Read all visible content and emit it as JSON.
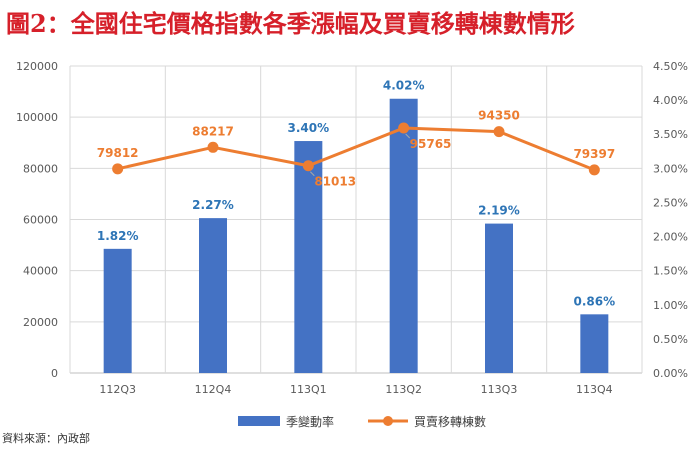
{
  "title": "圖2：全國住宅價格指數各季漲幅及買賣移轉棟數情形",
  "source": "資料來源：內政部",
  "chart_data": {
    "type": "bar",
    "categories": [
      "112Q3",
      "112Q4",
      "113Q1",
      "113Q2",
      "113Q3",
      "113Q4"
    ],
    "left_axis": {
      "ylim": [
        0,
        120000
      ],
      "ticks": [
        "0",
        "20000",
        "40000",
        "60000",
        "80000",
        "100000",
        "120000"
      ]
    },
    "right_axis": {
      "ylim": [
        0,
        4.5
      ],
      "ticks": [
        "0.00%",
        "0.50%",
        "1.00%",
        "1.50%",
        "2.00%",
        "2.50%",
        "3.00%",
        "3.50%",
        "4.00%",
        "4.50%"
      ]
    },
    "series": [
      {
        "name": "季變動率",
        "kind": "bar",
        "axis": "right",
        "color": "#4472c4",
        "values": [
          1.82,
          2.27,
          3.4,
          4.02,
          2.19,
          0.86
        ],
        "labels": [
          "1.82%",
          "2.27%",
          "3.40%",
          "4.02%",
          "2.19%",
          "0.86%"
        ]
      },
      {
        "name": "買賣移轉棟數",
        "kind": "line",
        "axis": "left",
        "color": "#ed7d31",
        "values": [
          79812,
          88217,
          81013,
          95765,
          94350,
          79397
        ],
        "labels": [
          "79812",
          "88217",
          "81013",
          "95765",
          "94350",
          "79397"
        ]
      }
    ],
    "grid": true,
    "legend_position": "bottom"
  }
}
